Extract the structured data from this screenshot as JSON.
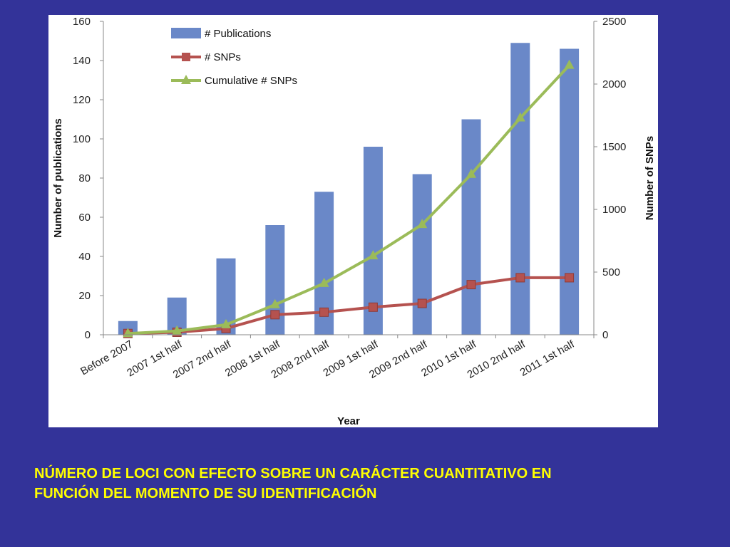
{
  "chart_data": {
    "type": "bar",
    "categories": [
      "Before 2007",
      "2007 1st half",
      "2007 2nd half",
      "2008 1st half",
      "2008 2nd half",
      "2009 1st half",
      "2009 2nd half",
      "2010 1st half",
      "2010 2nd half",
      "2011 1st half"
    ],
    "series": [
      {
        "name": "# Publications",
        "type": "bar",
        "axis": "left",
        "color": "#6a88c8",
        "values": [
          7,
          19,
          39,
          56,
          73,
          96,
          82,
          110,
          149,
          146
        ]
      },
      {
        "name": "# SNPs",
        "type": "line",
        "axis": "right",
        "color": "#b5524f",
        "marker": "square",
        "values": [
          10,
          20,
          50,
          160,
          180,
          220,
          250,
          400,
          455,
          455
        ]
      },
      {
        "name": "Cumulative # SNPs",
        "type": "line",
        "axis": "right",
        "color": "#9bbb59",
        "marker": "triangle",
        "values": [
          10,
          30,
          80,
          240,
          410,
          630,
          880,
          1280,
          1730,
          2150
        ]
      }
    ],
    "xlabel": "Year",
    "ylabel": "Number of publications",
    "y2label": "Number of SNPs",
    "ylim": [
      0,
      160
    ],
    "y2lim": [
      0,
      2500
    ],
    "yticks": [
      0,
      20,
      40,
      60,
      80,
      100,
      120,
      140,
      160
    ],
    "y2ticks": [
      0,
      500,
      1000,
      1500,
      2000,
      2500
    ],
    "grid": false,
    "legend": "top-left"
  },
  "caption": {
    "line1": "NÚMERO DE LOCI CON EFECTO SOBRE UN CARÁCTER CUANTITATIVO EN",
    "line2": "FUNCIÓN DEL MOMENTO DE SU IDENTIFICACIÓN"
  }
}
